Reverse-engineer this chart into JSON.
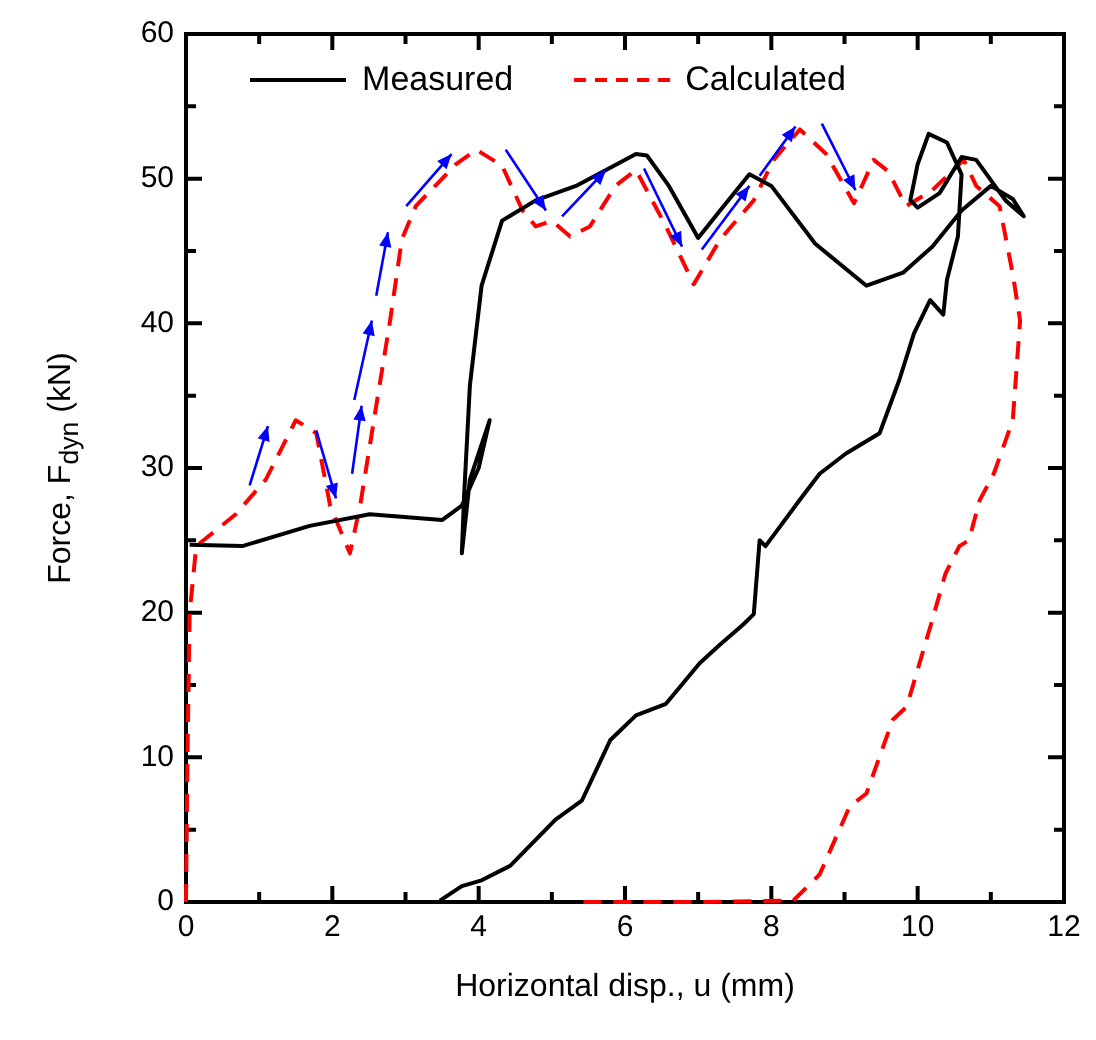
{
  "chart_data": {
    "type": "line",
    "xlabel": "Horizontal disp., u (mm)",
    "ylabel": "Force, F$_{dyn}$ (kN)",
    "xlim": [
      0,
      12
    ],
    "ylim": [
      0,
      60
    ],
    "xticks": [
      0,
      {
        "value": 1,
        "label": null
      },
      2,
      {
        "value": 3,
        "label": null
      },
      4,
      {
        "value": 5,
        "label": null
      },
      6,
      {
        "value": 7,
        "label": null
      },
      8,
      {
        "value": 9,
        "label": null
      },
      10,
      {
        "value": 11,
        "label": null
      },
      12
    ],
    "yticks": [
      0,
      {
        "value": 5,
        "label": null
      },
      10,
      {
        "value": 15,
        "label": null
      },
      20,
      {
        "value": 25,
        "label": null
      },
      30,
      {
        "value": 35,
        "label": null
      },
      40,
      {
        "value": 45,
        "label": null
      },
      50,
      {
        "value": 55,
        "label": null
      },
      60
    ],
    "grid": false,
    "legend": "top",
    "marker": "none",
    "series": [
      {
        "name": "Measured",
        "color": "#000000",
        "line_style": "solid",
        "x": [
          0.05,
          0.77,
          1.69,
          2.51,
          3.5,
          3.77,
          4.0,
          4.15,
          3.88,
          3.77,
          3.8,
          3.88,
          4.04,
          4.32,
          4.78,
          5.33,
          6.15,
          6.3,
          6.6,
          7.0,
          7.3,
          7.7,
          8.0,
          8.6,
          9.3,
          9.8,
          10.2,
          10.6,
          11.0,
          11.3,
          11.45,
          11.2,
          10.8,
          10.6,
          10.3,
          10.0,
          9.9,
          10.0,
          10.15,
          10.4,
          10.6,
          10.55,
          10.4,
          10.35,
          10.17,
          9.95,
          9.75,
          9.48,
          9.02,
          8.66,
          8.39,
          7.92,
          7.84,
          7.76,
          7.62,
          7.3,
          7.02,
          6.56,
          6.15,
          5.8,
          5.41,
          5.05,
          4.43,
          4.04,
          3.77,
          3.47
        ],
        "values": [
          24.7,
          24.6,
          26.0,
          26.8,
          26.4,
          27.4,
          30.0,
          33.3,
          29.2,
          24.1,
          28.0,
          35.7,
          42.6,
          47.1,
          48.5,
          49.5,
          51.7,
          51.6,
          49.5,
          45.9,
          47.8,
          50.3,
          49.5,
          45.5,
          42.6,
          43.5,
          45.3,
          47.8,
          49.5,
          48.6,
          47.4,
          48.5,
          51.3,
          51.5,
          49.0,
          48.0,
          48.5,
          51.0,
          53.1,
          52.5,
          50.3,
          46.0,
          43.0,
          40.6,
          41.6,
          39.3,
          36.1,
          32.4,
          31.0,
          29.6,
          27.8,
          24.6,
          25.0,
          19.9,
          19.2,
          17.8,
          16.5,
          13.7,
          12.9,
          11.2,
          7.0,
          5.7,
          2.5,
          1.5,
          1.1,
          0.1
        ]
      },
      {
        "name": "Calculated",
        "color": "#ff0000",
        "line_style": "dashed",
        "x": [
          0.0,
          0.02,
          0.05,
          0.14,
          0.68,
          1.09,
          1.5,
          1.78,
          1.97,
          2.24,
          2.38,
          2.6,
          2.79,
          2.95,
          3.14,
          3.69,
          3.97,
          4.32,
          4.6,
          4.78,
          5.0,
          5.25,
          5.52,
          5.87,
          6.15,
          6.56,
          6.94,
          7.3,
          7.76,
          8.03,
          8.39,
          8.75,
          9.13,
          9.4,
          9.6,
          9.84,
          10.2,
          10.63,
          10.8,
          11.12,
          11.3,
          11.4,
          11.3,
          11.04,
          10.85,
          10.7,
          10.57,
          10.38,
          10.2,
          9.85,
          9.66,
          9.3,
          9.07,
          8.66,
          8.3,
          7.0,
          5.4
        ],
        "values": [
          0.0,
          10.0,
          20.0,
          24.6,
          26.8,
          29.2,
          33.3,
          32.4,
          27.4,
          24.1,
          27.4,
          34.3,
          40.2,
          45.8,
          48.1,
          51.0,
          52.0,
          50.9,
          47.8,
          46.7,
          47.1,
          46.0,
          46.7,
          49.5,
          50.6,
          46.7,
          42.7,
          45.8,
          48.5,
          51.3,
          53.4,
          51.7,
          48.3,
          51.3,
          50.5,
          48.1,
          49.2,
          51.3,
          49.5,
          48.1,
          43.4,
          40.2,
          33.3,
          29.6,
          27.8,
          25.0,
          24.6,
          22.7,
          19.5,
          13.5,
          12.6,
          7.5,
          6.6,
          1.9,
          0.1,
          0.0,
          0.0
        ]
      }
    ]
  }
}
